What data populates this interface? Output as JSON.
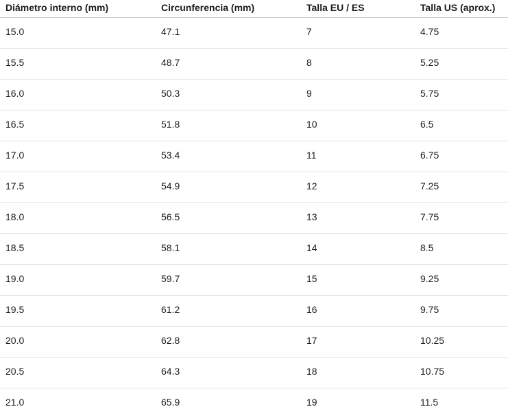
{
  "chart_data": {
    "type": "table",
    "columns": [
      "Diámetro interno (mm)",
      "Circunferencia (mm)",
      "Talla EU / ES",
      "Talla US (aprox.)"
    ],
    "rows": [
      [
        "15.0",
        "47.1",
        "7",
        "4.75"
      ],
      [
        "15.5",
        "48.7",
        "8",
        "5.25"
      ],
      [
        "16.0",
        "50.3",
        "9",
        "5.75"
      ],
      [
        "16.5",
        "51.8",
        "10",
        "6.5"
      ],
      [
        "17.0",
        "53.4",
        "11",
        "6.75"
      ],
      [
        "17.5",
        "54.9",
        "12",
        "7.25"
      ],
      [
        "18.0",
        "56.5",
        "13",
        "7.75"
      ],
      [
        "18.5",
        "58.1",
        "14",
        "8.5"
      ],
      [
        "19.0",
        "59.7",
        "15",
        "9.25"
      ],
      [
        "19.5",
        "61.2",
        "16",
        "9.75"
      ],
      [
        "20.0",
        "62.8",
        "17",
        "10.25"
      ],
      [
        "20.5",
        "64.3",
        "18",
        "10.75"
      ],
      [
        "21.0",
        "65.9",
        "19",
        "11.5"
      ]
    ],
    "layout": {
      "grid": "horizontal-row-dividers-only",
      "header_position": "top"
    }
  },
  "colors": {
    "text": "#1b1b1b",
    "header_divider": "#d0d0d0",
    "row_divider": "#e4e4e4",
    "background": "#ffffff"
  }
}
